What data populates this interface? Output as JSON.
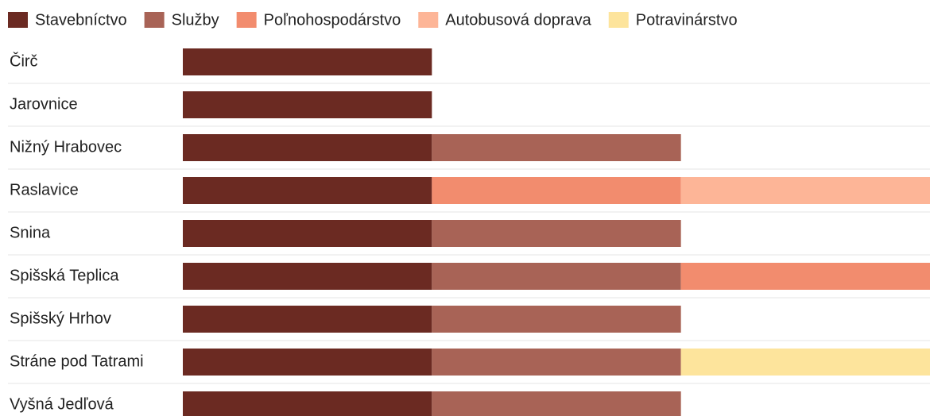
{
  "chart_data": {
    "type": "stacked-bar-horizontal",
    "categories": [
      "Čirč",
      "Jarovnice",
      "Nižný Hrabovec",
      "Raslavice",
      "Snina",
      "Spišská Teplica",
      "Spišský Hrhov",
      "Stráne pod Tatrami",
      "Vyšná Jedľová"
    ],
    "series": [
      {
        "name": "Stavebníctvo",
        "color": "#6b2a22",
        "values": [
          1,
          1,
          1,
          1,
          1,
          1,
          1,
          1,
          1
        ]
      },
      {
        "name": "Služby",
        "color": "#a86356",
        "values": [
          null,
          null,
          1,
          null,
          1,
          1,
          1,
          1,
          1
        ]
      },
      {
        "name": "Poľnohospodárstvo",
        "color": "#f28c6e",
        "values": [
          null,
          null,
          null,
          1,
          null,
          1,
          null,
          null,
          null
        ]
      },
      {
        "name": "Autobusová doprava",
        "color": "#fdb597",
        "values": [
          null,
          null,
          null,
          1,
          null,
          null,
          null,
          null,
          null
        ]
      },
      {
        "name": "Potravinárstvo",
        "color": "#fde49c",
        "values": [
          null,
          null,
          null,
          null,
          null,
          null,
          null,
          1,
          null
        ]
      }
    ],
    "xlim": [
      0,
      3
    ],
    "legend": "top-left"
  }
}
